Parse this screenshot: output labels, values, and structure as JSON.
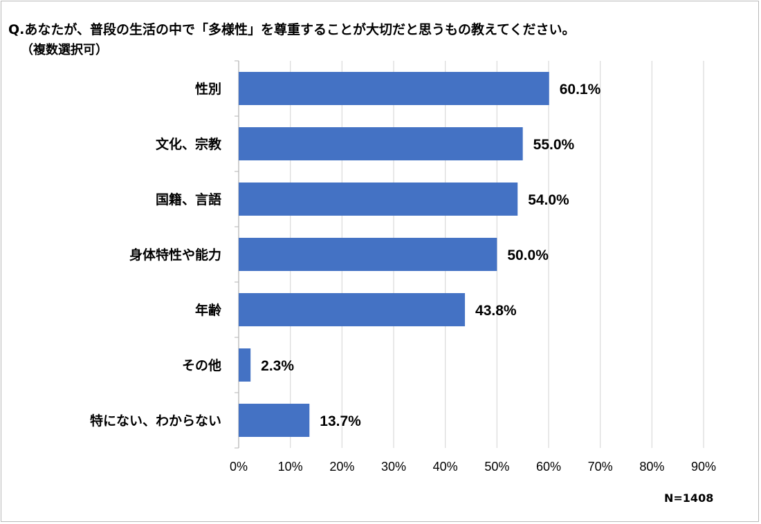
{
  "chart_data": {
    "type": "bar",
    "orientation": "horizontal",
    "title": "Q.あなたが、普段の生活の中で「多様性」を尊重することが大切だと思うもの教えてください。",
    "subtitle": "（複数選択可）",
    "categories": [
      "性別",
      "文化、宗教",
      "国籍、言語",
      "身体特性や能力",
      "年齢",
      "その他",
      "特にない、わからない"
    ],
    "values": [
      60.1,
      55.0,
      54.0,
      50.0,
      43.8,
      2.3,
      13.7
    ],
    "value_labels": [
      "60.1%",
      "55.0%",
      "54.0%",
      "50.0%",
      "43.8%",
      "2.3%",
      "13.7%"
    ],
    "xlim": [
      0,
      90
    ],
    "xticks": [
      0,
      10,
      20,
      30,
      40,
      50,
      60,
      70,
      80,
      90
    ],
    "xtick_labels": [
      "0%",
      "10%",
      "20%",
      "30%",
      "40%",
      "50%",
      "60%",
      "70%",
      "80%",
      "90%"
    ],
    "grid": true,
    "bar_color": "#4472c4",
    "grid_color": "#d9d9d9",
    "sample_size": "N=1408"
  }
}
